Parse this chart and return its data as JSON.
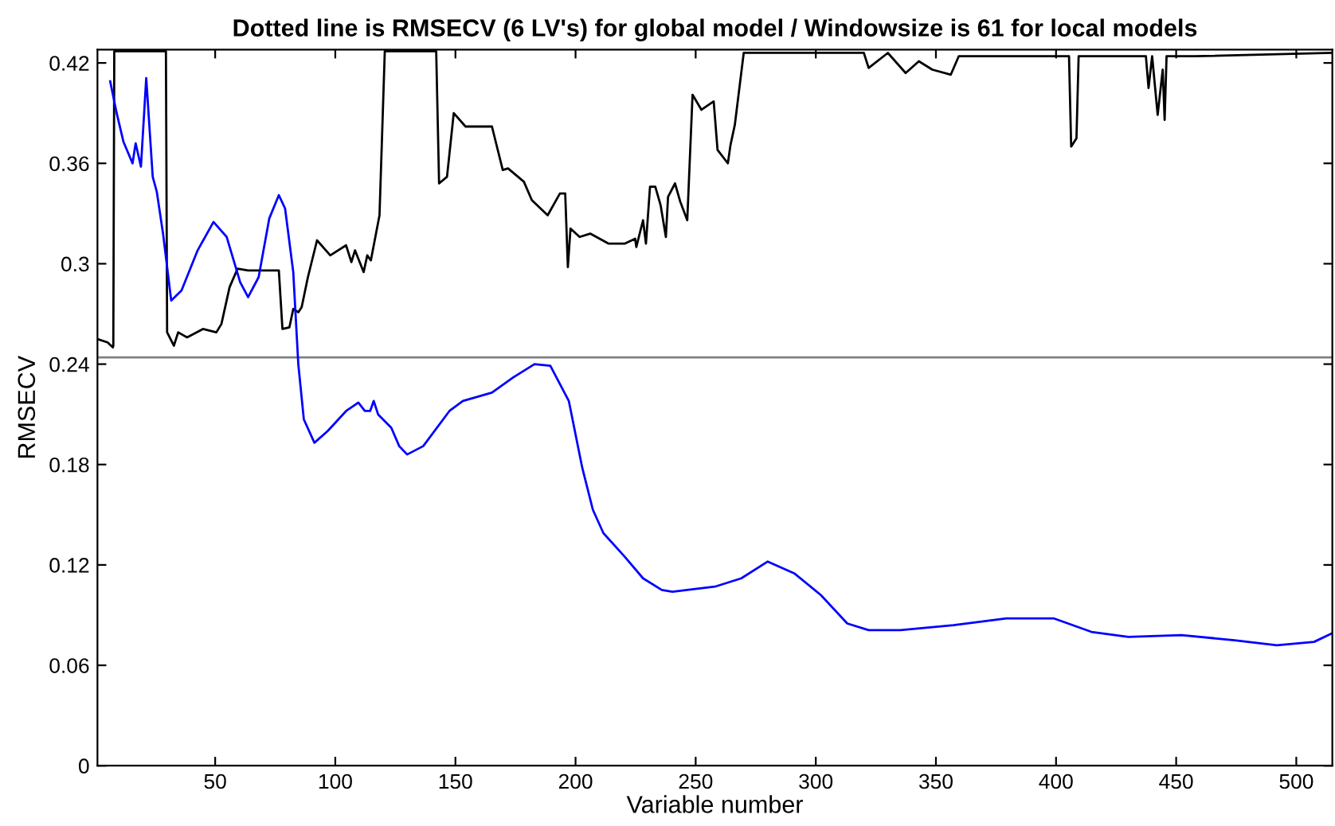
{
  "chart_data": {
    "type": "line",
    "title": "Dotted line is RMSECV (6 LV's) for global model / Windowsize is 61 for local models",
    "xlabel": "Variable number",
    "ylabel": "RMSECV",
    "xlim": [
      1,
      515
    ],
    "ylim": [
      0,
      0.428
    ],
    "xticks": [
      50,
      100,
      150,
      200,
      250,
      300,
      350,
      400,
      450,
      500
    ],
    "yticks": [
      0,
      0.06,
      0.12,
      0.18,
      0.24,
      0.3,
      0.36,
      0.42
    ],
    "grid": false,
    "legend": false,
    "marker": "none",
    "line_style": "solid",
    "ref_lines": [
      {
        "axis": "y",
        "value": 0.244,
        "color": "#808080"
      }
    ],
    "series": [
      {
        "color": "#000000",
        "x": [
          1,
          5.2,
          7.4,
          7.6,
          8,
          29.5,
          30,
          32.8,
          34.6,
          38.3,
          44.9,
          50.5,
          52.6,
          56,
          59.3,
          63.7,
          76.5,
          78,
          80.9,
          82.5,
          84.6,
          86,
          88.6,
          92.4,
          97.9,
          104.5,
          106.7,
          108.2,
          111.8,
          113.3,
          114.8,
          118.4,
          120.6,
          142,
          143.2,
          146.5,
          149.3,
          154.2,
          165.2,
          169.7,
          171.9,
          178.5,
          181.8,
          188.4,
          193.5,
          195.7,
          196.8,
          197.9,
          201.7,
          206.1,
          213.8,
          220.4,
          224.8,
          225.3,
          228.1,
          229.3,
          231,
          233.2,
          235.4,
          237.6,
          238.5,
          241.4,
          243.6,
          246.5,
          248.7,
          252.4,
          257.5,
          259.1,
          263.4,
          264.5,
          266.3,
          270,
          320,
          322,
          330,
          337.4,
          342.9,
          348.5,
          356.2,
          359.5,
          405.4,
          406.3,
          408.5,
          409.4,
          437.4,
          438.5,
          440,
          442.3,
          444.4,
          445.2,
          446,
          457.7,
          515
        ],
        "values": [
          0.255,
          0.253,
          0.25,
          0.251,
          0.427,
          0.427,
          0.259,
          0.251,
          0.259,
          0.256,
          0.261,
          0.259,
          0.264,
          0.286,
          0.297,
          0.296,
          0.296,
          0.261,
          0.262,
          0.273,
          0.271,
          0.274,
          0.292,
          0.314,
          0.305,
          0.311,
          0.301,
          0.308,
          0.295,
          0.305,
          0.302,
          0.329,
          0.427,
          0.427,
          0.348,
          0.352,
          0.39,
          0.382,
          0.382,
          0.356,
          0.357,
          0.349,
          0.338,
          0.329,
          0.342,
          0.342,
          0.298,
          0.321,
          0.316,
          0.318,
          0.312,
          0.312,
          0.315,
          0.31,
          0.326,
          0.312,
          0.346,
          0.346,
          0.335,
          0.316,
          0.34,
          0.348,
          0.337,
          0.326,
          0.401,
          0.392,
          0.397,
          0.368,
          0.36,
          0.371,
          0.383,
          0.426,
          0.426,
          0.417,
          0.426,
          0.414,
          0.421,
          0.416,
          0.413,
          0.424,
          0.424,
          0.37,
          0.375,
          0.424,
          0.424,
          0.405,
          0.424,
          0.389,
          0.416,
          0.386,
          0.424,
          0.424,
          0.426
        ]
      },
      {
        "color": "#0000ff",
        "x": [
          6.3,
          9,
          11.8,
          15.6,
          16.9,
          19.1,
          21.3,
          24,
          25.7,
          28.3,
          31.7,
          36,
          42.7,
          49.3,
          54.8,
          60.4,
          63.7,
          68.1,
          72.5,
          76.5,
          79.1,
          82.5,
          84.6,
          86.9,
          91.3,
          96.8,
          104.5,
          109.6,
          112.3,
          114.5,
          116,
          117.8,
          123.3,
          126.6,
          129.9,
          136.6,
          147.5,
          153.1,
          165.2,
          174,
          182.9,
          189.5,
          197.2,
          202.8,
          207.2,
          211.6,
          220.4,
          228.1,
          235.9,
          240.3,
          258,
          269,
          280,
          291,
          302.1,
          313.1,
          322,
          335.2,
          357.3,
          379.3,
          399.2,
          414.7,
          430.1,
          452.2,
          474.3,
          491.9,
          507.4,
          514.7
        ],
        "values": [
          0.409,
          0.39,
          0.373,
          0.36,
          0.372,
          0.358,
          0.411,
          0.352,
          0.343,
          0.318,
          0.278,
          0.284,
          0.308,
          0.325,
          0.316,
          0.289,
          0.28,
          0.292,
          0.327,
          0.341,
          0.333,
          0.295,
          0.24,
          0.207,
          0.193,
          0.2,
          0.212,
          0.217,
          0.212,
          0.212,
          0.218,
          0.21,
          0.202,
          0.191,
          0.186,
          0.191,
          0.212,
          0.218,
          0.223,
          0.232,
          0.24,
          0.239,
          0.218,
          0.178,
          0.153,
          0.139,
          0.125,
          0.112,
          0.105,
          0.104,
          0.107,
          0.112,
          0.122,
          0.115,
          0.102,
          0.085,
          0.081,
          0.081,
          0.084,
          0.088,
          0.088,
          0.08,
          0.077,
          0.078,
          0.075,
          0.072,
          0.074,
          0.079
        ]
      }
    ]
  }
}
